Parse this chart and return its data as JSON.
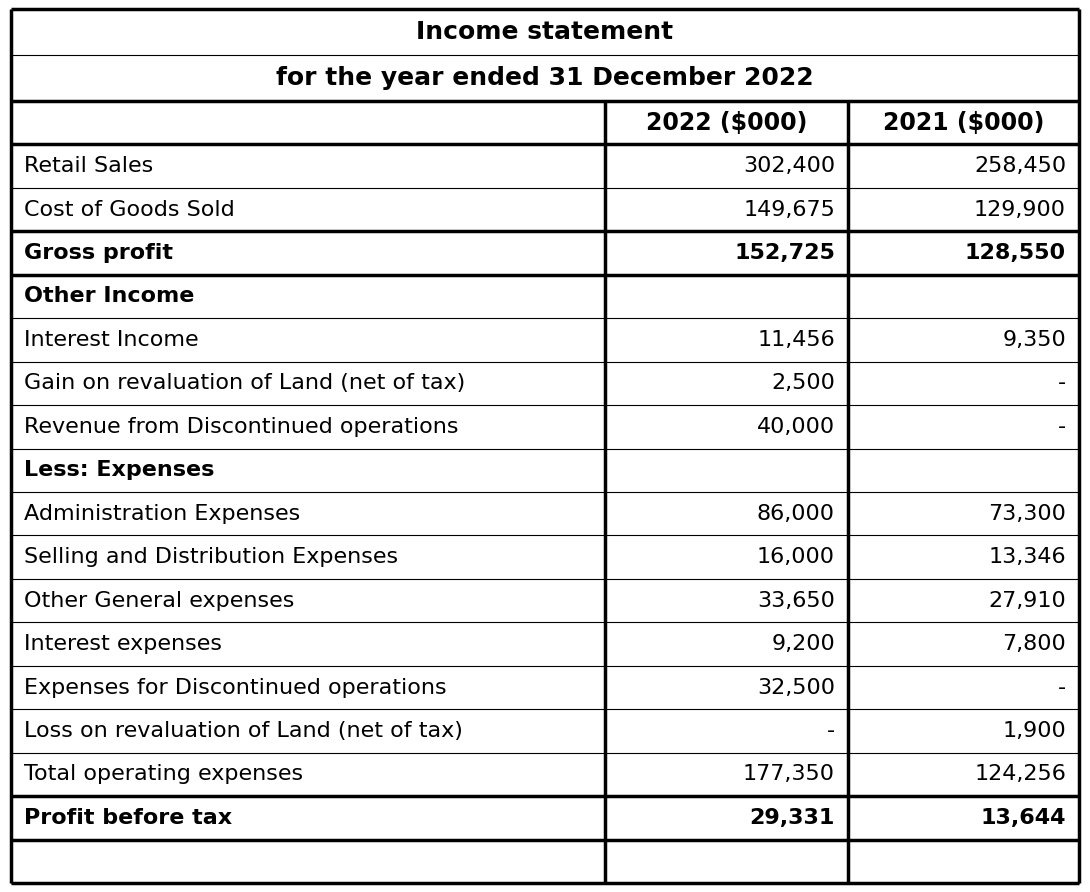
{
  "title_line1": "Income statement",
  "title_line2": "for the year ended 31 December 2022",
  "col_header_1": "2022 ($000)",
  "col_header_2": "2021 ($000)",
  "rows": [
    {
      "label": "Retail Sales",
      "val1": "302,400",
      "val2": "258,450",
      "bold": false,
      "header": false
    },
    {
      "label": "Cost of Goods Sold",
      "val1": "149,675",
      "val2": "129,900",
      "bold": false,
      "header": false
    },
    {
      "label": "Gross profit",
      "val1": "152,725",
      "val2": "128,550",
      "bold": true,
      "header": false
    },
    {
      "label": "Other Income",
      "val1": "",
      "val2": "",
      "bold": true,
      "header": true
    },
    {
      "label": "Interest Income",
      "val1": "11,456",
      "val2": "9,350",
      "bold": false,
      "header": false
    },
    {
      "label": "Gain on revaluation of Land (net of tax)",
      "val1": "2,500",
      "val2": "-",
      "bold": false,
      "header": false
    },
    {
      "label": "Revenue from Discontinued operations",
      "val1": "40,000",
      "val2": "-",
      "bold": false,
      "header": false
    },
    {
      "label": "Less: Expenses",
      "val1": "",
      "val2": "",
      "bold": true,
      "header": true
    },
    {
      "label": "Administration Expenses",
      "val1": "86,000",
      "val2": "73,300",
      "bold": false,
      "header": false
    },
    {
      "label": "Selling and Distribution Expenses",
      "val1": "16,000",
      "val2": "13,346",
      "bold": false,
      "header": false
    },
    {
      "label": "Other General expenses",
      "val1": "33,650",
      "val2": "27,910",
      "bold": false,
      "header": false
    },
    {
      "label": "Interest expenses",
      "val1": "9,200",
      "val2": "7,800",
      "bold": false,
      "header": false
    },
    {
      "label": "Expenses for Discontinued operations",
      "val1": "32,500",
      "val2": "-",
      "bold": false,
      "header": false
    },
    {
      "label": "Loss on revaluation of Land (net of tax)",
      "val1": "-",
      "val2": "1,900",
      "bold": false,
      "header": false
    },
    {
      "label": "Total operating expenses",
      "val1": "177,350",
      "val2": "124,256",
      "bold": false,
      "header": false
    },
    {
      "label": "Profit before tax",
      "val1": "29,331",
      "val2": "13,644",
      "bold": true,
      "header": false
    },
    {
      "label": "",
      "val1": "",
      "val2": "",
      "bold": false,
      "header": false
    }
  ],
  "thick_borders_after_rows": [
    1,
    2,
    14,
    15
  ],
  "col_split1": 0.555,
  "col_split2": 0.778,
  "bg_color": "#ffffff",
  "text_color": "#000000",
  "font_size": 16,
  "header_font_size": 17,
  "title_font_size": 18
}
